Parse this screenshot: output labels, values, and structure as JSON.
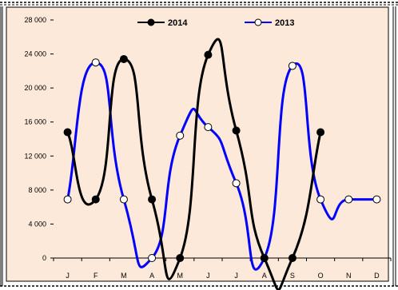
{
  "chart_data": {
    "type": "line",
    "categories": [
      "J",
      "F",
      "M",
      "A",
      "M",
      "J",
      "J",
      "A",
      "S",
      "O",
      "N",
      "D"
    ],
    "series": [
      {
        "name": "2014",
        "color": "#000000",
        "marker": "filled-circle",
        "values": [
          14800,
          6900,
          23400,
          6900,
          0,
          23900,
          15000,
          0,
          0,
          14800,
          null,
          null
        ]
      },
      {
        "name": "2013",
        "color": "#0000ff",
        "marker": "hollow-circle",
        "values": [
          6900,
          23000,
          6900,
          0,
          14400,
          15400,
          8800,
          0,
          22600,
          6900,
          6900,
          6900
        ]
      }
    ],
    "y_ticks": [
      "0",
      "4 000",
      "8 000",
      "12 000",
      "16 000",
      "20 000",
      "24 000",
      "28 000"
    ],
    "ylim": [
      0,
      28000
    ],
    "grid": false,
    "smooth": true,
    "legend_position": "top-center",
    "plot_background": "#fde9d9"
  }
}
